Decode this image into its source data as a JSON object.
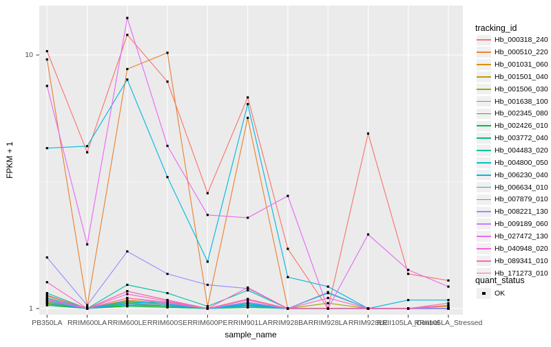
{
  "figure": {
    "y_axis": {
      "title": "FPKM + 1",
      "ticks": [
        "10",
        "1"
      ]
    },
    "x_axis": {
      "title": "sample_name"
    },
    "legends": {
      "tracking": {
        "title": "tracking_id"
      },
      "quant": {
        "title": "quant_status",
        "entries": [
          {
            "label": "OK",
            "marker": "black-square"
          }
        ]
      }
    },
    "colors": {
      "panel_background": "#EBEBEB",
      "gridline": "#FFFFFF",
      "tick_mark": "#333333",
      "tick_text": "#4D4D4D",
      "legend_key_background": "#F0F0F0"
    }
  },
  "chart_data": {
    "type": "line",
    "title": "",
    "xlabel": "sample_name",
    "ylabel": "FPKM + 1",
    "y_scale": "log10",
    "ylim": [
      0.95,
      15.7
    ],
    "y_ticks": [
      1,
      10
    ],
    "grid": true,
    "legend_position": "right",
    "point_marker": {
      "shape": "square",
      "color": "#000000",
      "legend": "quant_status",
      "label": "OK"
    },
    "categories": [
      "PB350LA",
      "RRIM600LA",
      "RRIM600LE",
      "RRIM600SE",
      "RRIM600PE",
      "RRIM901LA",
      "RRIM928BA",
      "RRIM928LA",
      "RRIM928LE",
      "RRII105LA_Control",
      "RRII105LA_Stressed"
    ],
    "series": [
      {
        "name": "Hb_000318_240",
        "color": "#F8766D",
        "values": [
          10.35,
          4.13,
          12.0,
          7.85,
          2.85,
          6.8,
          1.72,
          1.0,
          4.9,
          1.37,
          1.29
        ]
      },
      {
        "name": "Hb_000510_220",
        "color": "#EA8331",
        "values": [
          9.6,
          1.02,
          8.8,
          10.2,
          1.02,
          5.65,
          1.0,
          1.0,
          1.0,
          1.0,
          1.0
        ]
      },
      {
        "name": "Hb_001031_060",
        "color": "#D89000",
        "values": [
          1.1,
          1.0,
          1.08,
          1.05,
          1.0,
          1.06,
          1.0,
          1.0,
          1.0,
          1.0,
          1.0
        ]
      },
      {
        "name": "Hb_001501_040",
        "color": "#C09B00",
        "values": [
          1.06,
          1.0,
          1.05,
          1.03,
          1.0,
          1.04,
          1.0,
          1.0,
          1.0,
          1.0,
          1.0
        ]
      },
      {
        "name": "Hb_001506_030",
        "color": "#A3A500",
        "values": [
          1.12,
          1.0,
          1.17,
          1.08,
          1.0,
          1.09,
          1.0,
          1.05,
          1.0,
          1.0,
          1.02
        ]
      },
      {
        "name": "Hb_001638_100",
        "color": "#7CAE00",
        "values": [
          1.08,
          1.0,
          1.06,
          1.04,
          1.0,
          1.03,
          1.0,
          1.0,
          1.0,
          1.0,
          1.0
        ]
      },
      {
        "name": "Hb_002345_080",
        "color": "#39B600",
        "values": [
          1.04,
          1.0,
          1.03,
          1.02,
          1.0,
          1.02,
          1.0,
          1.0,
          1.0,
          1.0,
          1.0
        ]
      },
      {
        "name": "Hb_002426_010",
        "color": "#00BB4E",
        "values": [
          1.03,
          1.0,
          1.02,
          1.01,
          1.0,
          1.01,
          1.0,
          1.0,
          1.0,
          1.0,
          1.0
        ]
      },
      {
        "name": "Hb_003772_040",
        "color": "#00BF7D",
        "values": [
          1.05,
          1.0,
          1.04,
          1.02,
          1.0,
          1.03,
          1.0,
          1.0,
          1.0,
          1.0,
          1.0
        ]
      },
      {
        "name": "Hb_004483_020",
        "color": "#00C1A3",
        "values": [
          1.15,
          1.0,
          1.24,
          1.15,
          1.02,
          1.18,
          1.0,
          1.15,
          1.0,
          1.0,
          1.0
        ]
      },
      {
        "name": "Hb_004800_050",
        "color": "#00BFC4",
        "values": [
          1.07,
          1.0,
          1.05,
          1.06,
          1.0,
          1.04,
          1.0,
          1.0,
          1.0,
          1.0,
          1.0
        ]
      },
      {
        "name": "Hb_006230_040",
        "color": "#00BAE0",
        "values": [
          4.29,
          4.37,
          8.0,
          3.3,
          1.53,
          6.4,
          1.33,
          1.22,
          1.0,
          1.08,
          1.08
        ]
      },
      {
        "name": "Hb_006634_010",
        "color": "#00B0F6",
        "values": [
          1.1,
          1.0,
          1.07,
          1.04,
          1.0,
          1.05,
          1.0,
          1.0,
          1.0,
          1.0,
          1.0
        ]
      },
      {
        "name": "Hb_007879_010",
        "color": "#35A2FF",
        "values": [
          1.05,
          1.0,
          1.04,
          1.03,
          1.0,
          1.02,
          1.0,
          1.0,
          1.0,
          1.0,
          1.0
        ]
      },
      {
        "name": "Hb_008221_130",
        "color": "#9590FF",
        "values": [
          1.59,
          1.03,
          1.68,
          1.37,
          1.24,
          1.2,
          1.0,
          1.16,
          1.0,
          1.0,
          1.0
        ]
      },
      {
        "name": "Hb_009189_060",
        "color": "#C77CFF",
        "values": [
          1.08,
          1.0,
          1.1,
          1.05,
          1.0,
          1.06,
          1.0,
          1.0,
          1.0,
          1.0,
          1.0
        ]
      },
      {
        "name": "Hb_027472_130",
        "color": "#E76BF3",
        "values": [
          7.55,
          1.79,
          14.0,
          4.38,
          2.34,
          2.28,
          2.78,
          1.0,
          1.96,
          1.42,
          1.22
        ]
      },
      {
        "name": "Hb_040948_020",
        "color": "#FA62DB",
        "values": [
          1.09,
          1.0,
          1.14,
          1.07,
          1.0,
          1.08,
          1.0,
          1.0,
          1.0,
          1.0,
          1.03
        ]
      },
      {
        "name": "Hb_089341_010",
        "color": "#FF62BC",
        "values": [
          1.27,
          1.0,
          1.17,
          1.08,
          1.0,
          1.21,
          1.0,
          1.1,
          1.0,
          1.0,
          1.03
        ]
      },
      {
        "name": "Hb_171273_010",
        "color": "#FF6A98",
        "values": [
          1.13,
          1.0,
          1.1,
          1.06,
          1.0,
          1.09,
          1.0,
          1.0,
          1.0,
          1.0,
          1.05
        ]
      }
    ]
  }
}
